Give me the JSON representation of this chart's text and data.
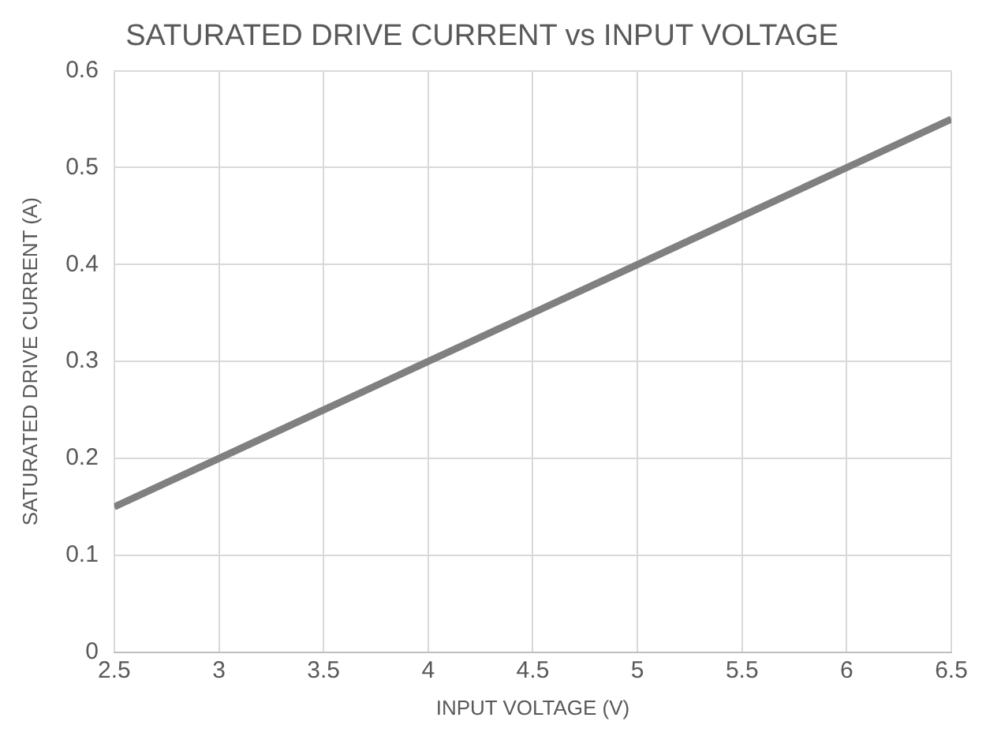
{
  "chart_data": {
    "type": "line",
    "title": "SATURATED DRIVE CURRENT vs INPUT VOLTAGE",
    "xlabel": "INPUT VOLTAGE (V)",
    "ylabel": "SATURATED DRIVE CURRENT (A)",
    "x": [
      2.5,
      3,
      3.5,
      4,
      4.5,
      5,
      5.5,
      6,
      6.5
    ],
    "series": [
      {
        "color": "#808080",
        "values": [
          0.15,
          0.2,
          0.25,
          0.3,
          0.35,
          0.4,
          0.45,
          0.5,
          0.55
        ]
      }
    ],
    "xlim": [
      2.5,
      6.5
    ],
    "xticks": [
      2.5,
      3,
      3.5,
      4,
      4.5,
      5,
      5.5,
      6,
      6.5
    ],
    "ylim": [
      0,
      0.6
    ],
    "yticks": [
      0,
      0.1,
      0.2,
      0.3,
      0.4,
      0.5,
      0.6
    ],
    "grid": true,
    "legend": false,
    "marker": "none",
    "line_style": "solid"
  }
}
